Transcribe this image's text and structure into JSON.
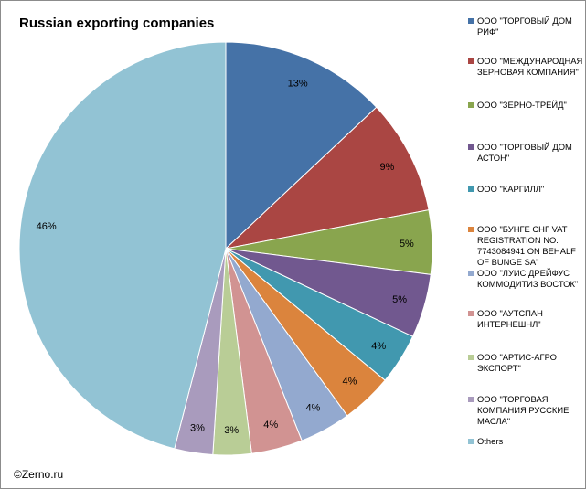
{
  "chart_data": {
    "type": "pie",
    "title": "Russian exporting companies",
    "slices": [
      {
        "label": "ООО \"ТОРГОВЫЙ ДОМ РИФ\"",
        "value": 13,
        "value_label": "13%",
        "color": "#4572A7"
      },
      {
        "label": "ООО \"МЕЖДУНАРОДНАЯ ЗЕРНОВАЯ КОМПАНИЯ\"",
        "value": 9,
        "value_label": "9%",
        "color": "#AA4643"
      },
      {
        "label": "ООО \"ЗЕРНО-ТРЕЙД\"",
        "value": 5,
        "value_label": "5%",
        "color": "#89A54E"
      },
      {
        "label": "ООО \"ТОРГОВЫЙ ДОМ АСТОН\"",
        "value": 5,
        "value_label": "5%",
        "color": "#71588F"
      },
      {
        "label": "ООО \"КАРГИЛЛ\"",
        "value": 4,
        "value_label": "4%",
        "color": "#4198AF"
      },
      {
        "label": "ООО \"БУНГЕ СНГ VAT REGISTRATION NO. 7743084941 ON BEHALF OF BUNGE SA\"",
        "value": 4,
        "value_label": "4%",
        "color": "#DB843D"
      },
      {
        "label": "ООО \"ЛУИС ДРЕЙФУС КОММОДИТИЗ ВОСТОК\"",
        "value": 4,
        "value_label": "4%",
        "color": "#93A9CF"
      },
      {
        "label": "ООО \"АУТСПАН ИНТЕРНЕШНЛ\"",
        "value": 4,
        "value_label": "4%",
        "color": "#D19392"
      },
      {
        "label": "ООО \"АРТИС-АГРО ЭКСПОРТ\"",
        "value": 3,
        "value_label": "3%",
        "color": "#B9CD96"
      },
      {
        "label": "ООО \"ТОРГОВАЯ КОМПАНИЯ РУССКИЕ МАСЛА\"",
        "value": 3,
        "value_label": "3%",
        "color": "#A99BBD"
      },
      {
        "label": "Others",
        "value": 46,
        "value_label": "46%",
        "color": "#92C3D4"
      }
    ],
    "legend_position": "right",
    "start_angle": "12 o'clock",
    "direction": "clockwise"
  },
  "legend": {
    "lines": [
      "ООО \"ТОРГОВЫЙ ДОМ\nРИФ\"",
      "ООО \"МЕЖДУНАРОДНАЯ\nЗЕРНОВАЯ КОМПАНИЯ\"",
      "ООО \"ЗЕРНО-ТРЕЙД\"",
      "ООО \"ТОРГОВЫЙ ДОМ\nАСТОН\"",
      "ООО \"КАРГИЛЛ\"",
      "ООО \"БУНГЕ СНГ VAT\nREGISTRATION NO.\n7743084941 ON BEHALF\nOF BUNGE SA\"",
      "ООО \"ЛУИС ДРЕЙФУС\nКОММОДИТИЗ ВОСТОК\"",
      "ООО \"АУТСПАН\nИНТЕРНЕШНЛ\"",
      "ООО \"АРТИС-АГРО\nЭКСПОРТ\"",
      "ООО \"ТОРГОВАЯ\nКОМПАНИЯ РУССКИЕ\nМАСЛА\"",
      "Others"
    ]
  },
  "footer": {
    "copyright": "©Zerno.ru"
  }
}
